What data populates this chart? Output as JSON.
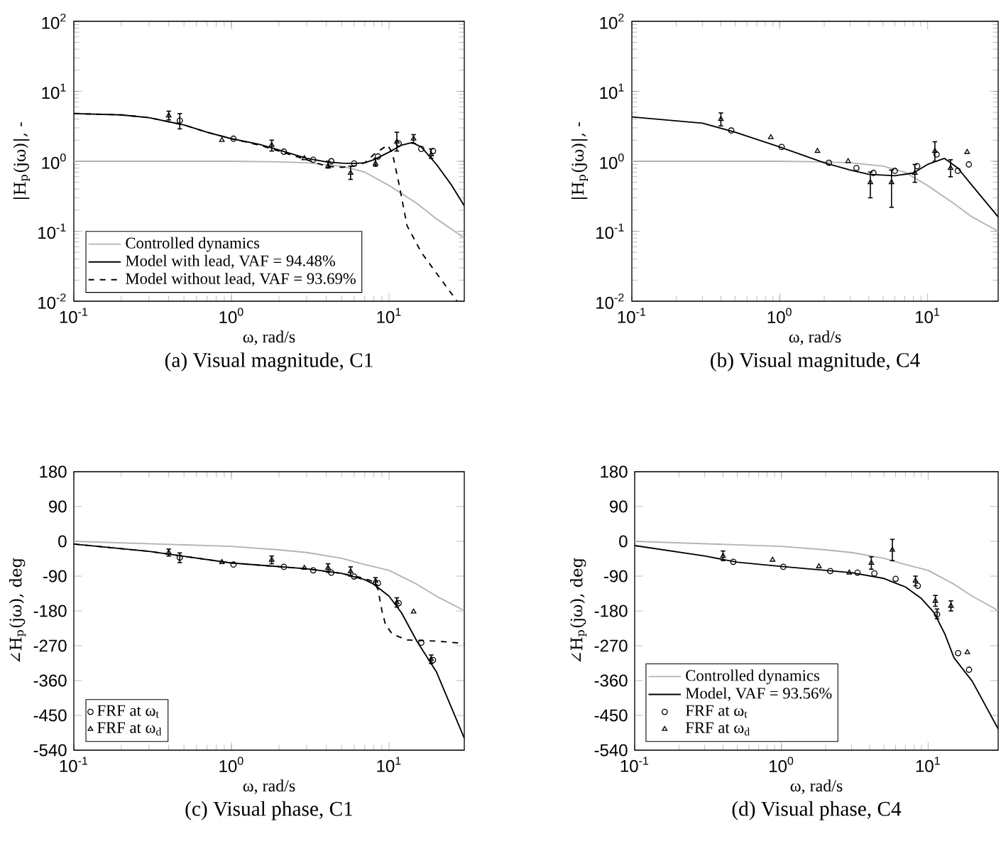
{
  "chart_data": [
    {
      "type": "line",
      "title": "(a) Visual magnitude, C1",
      "xlabel": "ω, rad/s",
      "ylabel": "|H$_{p}$(jω)|, -",
      "log": "xy",
      "legend": "bottom left",
      "xlim": [
        0.1,
        30
      ],
      "ylim": [
        0.01,
        100
      ],
      "xticks": [
        {
          "value": 0.1,
          "label": "10$^{-1}$"
        },
        {
          "value": 1,
          "label": "10$^{0}$"
        },
        {
          "value": 10,
          "label": "10$^{1}$"
        }
      ],
      "yticks": [
        {
          "value": 0.01,
          "label": "10$^{-2}$"
        },
        {
          "value": 0.1,
          "label": "10$^{-1}$"
        },
        {
          "value": 1,
          "label": "10$^{0}$"
        },
        {
          "value": 10,
          "label": "10$^{1}$"
        },
        {
          "value": 100,
          "label": "10$^{2}$"
        }
      ],
      "series": [
        {
          "name": "Controlled dynamics",
          "color": "#b3b3b3",
          "x": [
            0.1,
            1,
            2,
            3,
            5,
            7,
            10,
            15,
            20,
            30
          ],
          "values": [
            1,
            1,
            0.98,
            0.95,
            0.85,
            0.7,
            0.45,
            0.25,
            0.15,
            0.08
          ]
        },
        {
          "name": "Model with lead, VAF = 94.48%",
          "color": "#000000",
          "x": [
            0.1,
            0.2,
            0.3,
            0.5,
            0.7,
            1,
            1.5,
            2,
            3,
            4,
            5,
            6,
            7,
            8,
            10,
            12,
            14,
            16,
            20,
            25,
            30
          ],
          "values": [
            4.8,
            4.6,
            4.2,
            3.3,
            2.6,
            2.1,
            1.75,
            1.45,
            1.1,
            0.98,
            0.94,
            0.93,
            0.95,
            1.05,
            1.35,
            1.7,
            1.85,
            1.6,
            0.9,
            0.45,
            0.23
          ]
        },
        {
          "name": "Model without lead, VAF = 93.69%",
          "line_style": "dashed",
          "color": "#000000",
          "x": [
            0.1,
            0.2,
            0.3,
            0.5,
            0.7,
            1,
            1.5,
            2,
            3,
            4,
            5,
            6,
            7,
            8,
            9,
            9.8,
            10.5,
            11.5,
            13,
            16,
            20,
            27
          ],
          "values": [
            4.8,
            4.6,
            4.2,
            3.3,
            2.6,
            2.1,
            1.7,
            1.4,
            1.05,
            0.85,
            0.82,
            0.85,
            0.95,
            1.25,
            1.5,
            1.7,
            1.3,
            0.5,
            0.12,
            0.05,
            0.025,
            0.01
          ]
        },
        {
          "type": "scatter",
          "marker": "circle",
          "color": "#000000",
          "x": [
            0.47,
            1.03,
            2.15,
            3.3,
            4.3,
            6.0,
            8.5,
            11.5,
            16.0,
            19.0
          ],
          "values": [
            3.8,
            2.1,
            1.37,
            1.05,
            1.0,
            0.93,
            1.17,
            1.8,
            1.5,
            1.4
          ],
          "errors": [
            [
              2.9,
              4.8
            ],
            null,
            null,
            null,
            null,
            null,
            null,
            null,
            null,
            null
          ]
        },
        {
          "type": "scatter",
          "marker": "triangle",
          "color": "#000000",
          "x": [
            0.4,
            0.87,
            1.8,
            2.9,
            4.1,
            5.7,
            8.2,
            11.2,
            14.3,
            18.5
          ],
          "values": [
            4.5,
            2.0,
            1.7,
            1.1,
            0.85,
            0.68,
            0.93,
            1.9,
            2.1,
            1.25
          ],
          "errors": [
            [
              3.9,
              5.2
            ],
            null,
            [
              1.4,
              2.0
            ],
            null,
            [
              0.8,
              1.0
            ],
            [
              0.55,
              0.85
            ],
            [
              0.85,
              1.1
            ],
            [
              1.4,
              2.6
            ],
            [
              1.8,
              2.4
            ],
            [
              1.1,
              1.5
            ]
          ]
        }
      ]
    },
    {
      "type": "line",
      "title": "(b) Visual magnitude, C4",
      "xlabel": "ω, rad/s",
      "ylabel": "|H$_{p}$(jω)|, -",
      "log": "xy",
      "xlim": [
        0.1,
        30
      ],
      "ylim": [
        0.01,
        100
      ],
      "xticks": [
        {
          "value": 0.1,
          "label": "10$^{-1}$"
        },
        {
          "value": 1,
          "label": "10$^{0}$"
        },
        {
          "value": 10,
          "label": "10$^{1}$"
        }
      ],
      "yticks": [
        {
          "value": 0.01,
          "label": "10$^{-2}$"
        },
        {
          "value": 0.1,
          "label": "10$^{-1}$"
        },
        {
          "value": 1,
          "label": "10$^{0}$"
        },
        {
          "value": 10,
          "label": "10$^{1}$"
        },
        {
          "value": 100,
          "label": "10$^{2}$"
        }
      ],
      "series": [
        {
          "color": "#b3b3b3",
          "x": [
            0.1,
            1,
            2,
            3,
            5,
            7,
            10,
            15,
            20,
            30
          ],
          "values": [
            1,
            1,
            0.98,
            0.95,
            0.85,
            0.7,
            0.45,
            0.25,
            0.16,
            0.1
          ]
        },
        {
          "color": "#000000",
          "x": [
            0.1,
            0.3,
            0.5,
            1,
            2,
            3,
            4,
            6,
            8,
            10,
            13,
            16,
            20,
            30
          ],
          "values": [
            4.3,
            3.5,
            2.6,
            1.6,
            0.95,
            0.75,
            0.65,
            0.62,
            0.68,
            0.9,
            1.1,
            0.8,
            0.45,
            0.16
          ]
        },
        {
          "type": "scatter",
          "marker": "circle",
          "color": "#000000",
          "x": [
            0.47,
            1.03,
            2.15,
            3.3,
            4.3,
            6.0,
            8.5,
            11.5,
            16.0,
            19.0
          ],
          "values": [
            2.75,
            1.6,
            0.95,
            0.8,
            0.68,
            0.73,
            0.85,
            1.25,
            0.73,
            0.9
          ]
        },
        {
          "type": "scatter",
          "marker": "triangle",
          "color": "#000000",
          "x": [
            0.4,
            0.87,
            1.8,
            2.9,
            4.1,
            5.7,
            8.2,
            11.2,
            14.3,
            18.5
          ],
          "values": [
            4.0,
            2.2,
            1.4,
            1.0,
            0.5,
            0.5,
            0.68,
            1.4,
            0.8,
            1.35
          ],
          "errors": [
            [
              3.2,
              4.9
            ],
            null,
            null,
            null,
            [
              0.3,
              0.7
            ],
            [
              0.22,
              0.75
            ],
            [
              0.5,
              0.9
            ],
            [
              1.0,
              1.9
            ],
            [
              0.6,
              1.05
            ],
            null
          ]
        }
      ]
    },
    {
      "type": "line",
      "title": "(c) Visual phase, C1",
      "xlabel": "ω, rad/s",
      "ylabel": "∠H$_{p}$(jω), deg",
      "log": "x",
      "legend": "bottom left",
      "xlim": [
        0.1,
        30
      ],
      "ylim": [
        -540,
        180
      ],
      "xticks": [
        {
          "value": 0.1,
          "label": "10$^{-1}$"
        },
        {
          "value": 1,
          "label": "10$^{0}$"
        },
        {
          "value": 10,
          "label": "10$^{1}$"
        }
      ],
      "yticks": [
        180,
        90,
        0,
        -90,
        -180,
        -270,
        -360,
        -450,
        -540
      ],
      "series": [
        {
          "color": "#b3b3b3",
          "x": [
            0.1,
            1,
            2,
            3,
            5,
            7,
            10,
            15,
            20,
            30
          ],
          "values": [
            0,
            -13,
            -22,
            -29,
            -44,
            -60,
            -75,
            -111,
            -142,
            -179
          ]
        },
        {
          "color": "#000000",
          "x": [
            0.1,
            0.3,
            1,
            3,
            5,
            7,
            8,
            10,
            12,
            15,
            20,
            30
          ],
          "values": [
            -7,
            -26,
            -56,
            -71,
            -83,
            -99,
            -111,
            -142,
            -185,
            -258,
            -338,
            -509
          ]
        },
        {
          "line_style": "dashed",
          "color": "#000000",
          "x": [
            0.1,
            0.3,
            1,
            3,
            5,
            7,
            8,
            8.5,
            9,
            9.5,
            10.5,
            13,
            20,
            30
          ],
          "values": [
            -7,
            -26,
            -56,
            -71,
            -83,
            -96,
            -105,
            -124,
            -179,
            -216,
            -240,
            -255,
            -258,
            -264
          ]
        },
        {
          "name": "FRF at ω$_{t}$",
          "type": "scatter",
          "marker": "circle",
          "color": "#000000",
          "x": [
            0.47,
            1.03,
            2.15,
            3.3,
            4.3,
            6.0,
            8.5,
            11.5,
            16.0,
            19.0
          ],
          "values": [
            -42,
            -60,
            -66,
            -75,
            -81,
            -91,
            -108,
            -160,
            -262,
            -307
          ],
          "errors": [
            [
              -55,
              -30
            ],
            null,
            null,
            null,
            null,
            null,
            null,
            null,
            null,
            null
          ]
        },
        {
          "name": "FRF at ω$_{d}$",
          "type": "scatter",
          "marker": "triangle",
          "color": "#000000",
          "x": [
            0.4,
            0.87,
            1.8,
            2.9,
            4.1,
            5.7,
            8.2,
            11.2,
            14.3,
            18.5
          ],
          "values": [
            -29,
            -54,
            -48,
            -69,
            -69,
            -78,
            -103,
            -158,
            -182,
            -305
          ],
          "errors": [
            [
              -38,
              -20
            ],
            null,
            [
              -58,
              -38
            ],
            null,
            [
              -80,
              -58
            ],
            [
              -90,
              -66
            ],
            [
              -112,
              -94
            ],
            [
              -170,
              -146
            ],
            null,
            [
              -316,
              -294
            ]
          ]
        }
      ]
    },
    {
      "type": "line",
      "title": "(d) Visual phase, C4",
      "xlabel": "ω, rad/s",
      "ylabel": "∠H$_{p}$(jω), deg",
      "log": "x",
      "legend": "bottom left",
      "xlim": [
        0.1,
        30
      ],
      "ylim": [
        -540,
        180
      ],
      "xticks": [
        {
          "value": 0.1,
          "label": "10$^{-1}$"
        },
        {
          "value": 1,
          "label": "10$^{0}$"
        },
        {
          "value": 10,
          "label": "10$^{1}$"
        }
      ],
      "yticks": [
        180,
        90,
        0,
        -90,
        -180,
        -270,
        -360,
        -450,
        -540
      ],
      "series": [
        {
          "name": "Controlled dynamics",
          "color": "#b3b3b3",
          "x": [
            0.1,
            1,
            2,
            3,
            5,
            7,
            10,
            15,
            20,
            30
          ],
          "values": [
            0,
            -13,
            -22,
            -29,
            -44,
            -60,
            -75,
            -111,
            -142,
            -179
          ]
        },
        {
          "name": "Model, VAF = 93.56%",
          "color": "#000000",
          "x": [
            0.1,
            0.3,
            0.5,
            1,
            2,
            3,
            5,
            7,
            9,
            11,
            13,
            15,
            20,
            30
          ],
          "values": [
            -11,
            -38,
            -54,
            -65,
            -75,
            -81,
            -96,
            -118,
            -148,
            -185,
            -240,
            -301,
            -362,
            -485
          ]
        },
        {
          "name": "FRF at ω$_{t}$",
          "type": "scatter",
          "marker": "circle",
          "color": "#000000",
          "x": [
            0.47,
            1.03,
            2.15,
            3.3,
            4.3,
            6.0,
            8.5,
            11.5,
            16.0,
            19.0
          ],
          "values": [
            -53,
            -66,
            -77,
            -81,
            -83,
            -97,
            -115,
            -189,
            -289,
            -332
          ],
          "errors": [
            null,
            null,
            null,
            null,
            null,
            null,
            null,
            [
              -200,
              -175
            ],
            null,
            null
          ]
        },
        {
          "name": "FRF at ω$_{d}$",
          "type": "scatter",
          "marker": "triangle",
          "color": "#000000",
          "x": [
            0.4,
            0.87,
            1.8,
            2.9,
            4.1,
            5.7,
            8.2,
            11.2,
            14.3,
            18.5
          ],
          "values": [
            -38,
            -48,
            -65,
            -81,
            -56,
            -22,
            -102,
            -154,
            -167,
            -287
          ],
          "errors": [
            [
              -50,
              -25
            ],
            null,
            null,
            null,
            [
              -72,
              -40
            ],
            [
              -50,
              5
            ],
            [
              -115,
              -90
            ],
            [
              -168,
              -140
            ],
            [
              -180,
              -154
            ],
            null
          ]
        }
      ]
    }
  ]
}
